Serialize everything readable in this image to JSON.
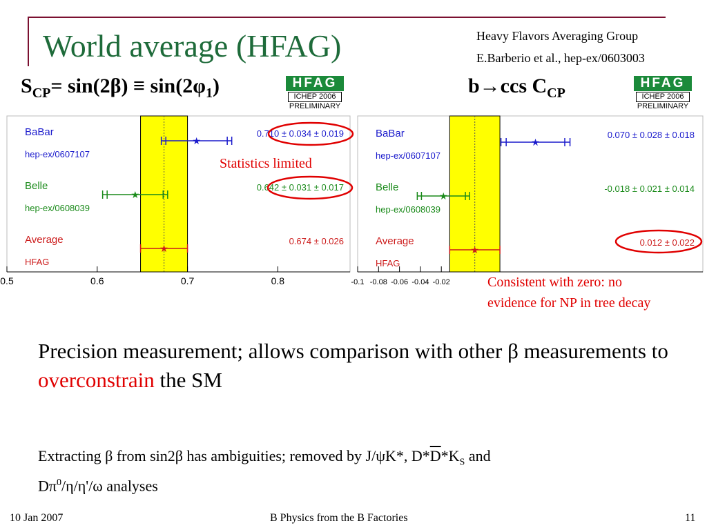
{
  "slide": {
    "title": "World average (HFAG)",
    "source_line1": "Heavy Flavors Averaging Group",
    "source_line2": "E.Barberio et al., hep-ex/0603003",
    "left_label_s": "S",
    "left_label_s_sub": "CP",
    "left_label_rest": "= sin(2β) ≡ sin(2φ",
    "left_label_phi_sub": "1",
    "left_label_close": ")",
    "right_label_main": "b→ccs C",
    "right_label_sub": "CP",
    "logo_text": "HFAG",
    "logo_event": "ICHEP 2006",
    "logo_status": "PRELIMINARY",
    "note_stats": "Statistics limited",
    "note_zero_line1": "Consistent with zero: no",
    "note_zero_line2": "evidence for NP in tree decay",
    "body1_pre": "Precision measurement; allows comparison with other β measurements to ",
    "body1_red": "overconstrain",
    "body1_post": " the SM",
    "body2_a": "Extracting β from sin2β has ambiguities; removed by J/ψK*, D*",
    "body2_b": "D",
    "body2_c": "*K",
    "body2_d": "S",
    "body2_e": " and",
    "body2_f": "Dπ",
    "body2_g": "0",
    "body2_h": "/η/η'/ω analyses",
    "footer_date": "10 Jan 2007",
    "footer_center": "B Physics from the B Factories",
    "footer_page": "11"
  },
  "colors": {
    "babar": "#1a1acc",
    "belle": "#1a8a1a",
    "average": "#cc1a1a",
    "band": "#ffff00",
    "highlight": "#e00000",
    "title": "#1e6b3a"
  },
  "chart_data": [
    {
      "type": "scatter",
      "title": "sin(2β) ≡ sin(2φ1)",
      "xlim": [
        0.5,
        0.88
      ],
      "xticks": [
        0.5,
        0.6,
        0.7,
        0.8
      ],
      "tick_labels": [
        "0.5",
        "0.6",
        "0.7",
        "0.8"
      ],
      "band": [
        0.648,
        0.7
      ],
      "average_line": 0.674,
      "points": [
        {
          "name": "BaBar",
          "ref": "hep-ex/0607107",
          "value": 0.71,
          "stat": 0.034,
          "tot": 0.039,
          "label": "0.710 ± 0.034 ± 0.019",
          "color": "#1a1acc"
        },
        {
          "name": "Belle",
          "ref": "hep-ex/0608039",
          "value": 0.642,
          "stat": 0.031,
          "tot": 0.036,
          "label": "0.642 ± 0.031 ± 0.017",
          "color": "#1a8a1a"
        },
        {
          "name": "Average",
          "ref": "HFAG",
          "value": 0.674,
          "stat": 0.026,
          "tot": 0.026,
          "label": "0.674 ± 0.026",
          "color": "#cc1a1a"
        }
      ]
    },
    {
      "type": "scatter",
      "title": "b→ccs CCP",
      "xlim": [
        -0.1,
        0.23
      ],
      "xticks": [
        -0.1,
        -0.08,
        -0.06,
        -0.04,
        -0.02
      ],
      "tick_labels": [
        "-0.1",
        "-0.08",
        "-0.06",
        "-0.04",
        "-0.02"
      ],
      "band": [
        -0.012,
        0.036
      ],
      "average_line": 0.012,
      "points": [
        {
          "name": "BaBar",
          "ref": "hep-ex/0607107",
          "value": 0.07,
          "stat": 0.028,
          "tot": 0.033,
          "label": "0.070 ± 0.028 ± 0.018",
          "color": "#1a1acc"
        },
        {
          "name": "Belle",
          "ref": "hep-ex/0608039",
          "value": -0.018,
          "stat": 0.021,
          "tot": 0.025,
          "label": "-0.018 ± 0.021 ± 0.014",
          "color": "#1a8a1a"
        },
        {
          "name": "Average",
          "ref": "HFAG",
          "value": 0.012,
          "stat": 0.022,
          "tot": 0.022,
          "label": "0.012 ± 0.022",
          "color": "#cc1a1a"
        }
      ]
    }
  ]
}
